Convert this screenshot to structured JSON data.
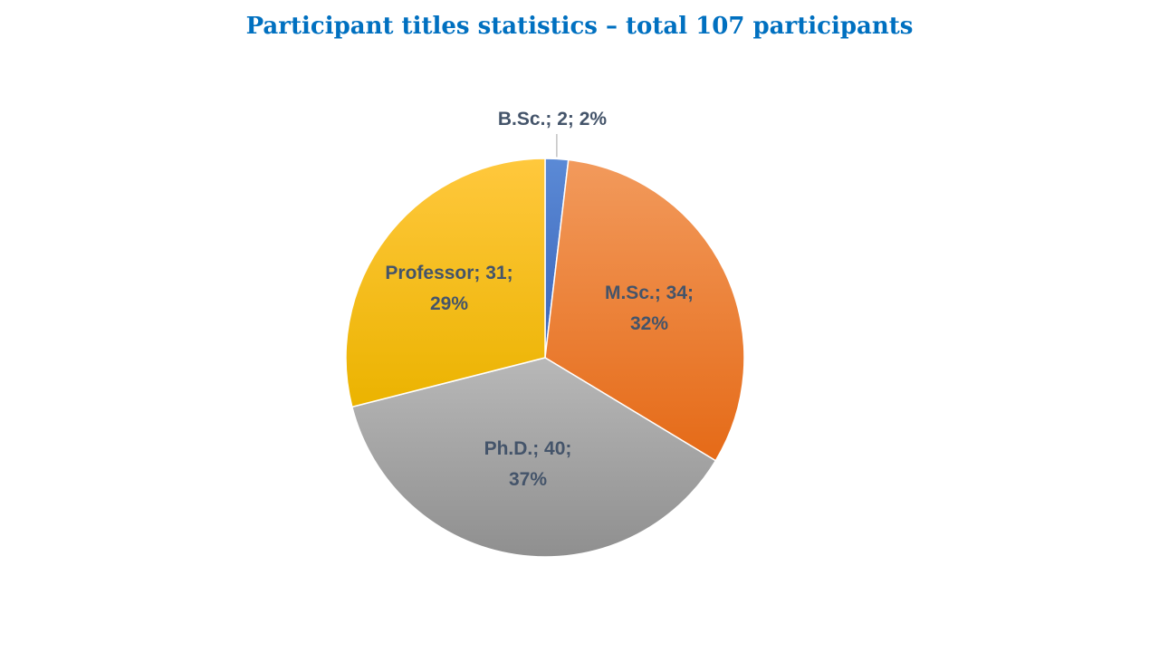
{
  "chart_data": {
    "type": "pie",
    "title": "Participant titles statistics – total 107 participants",
    "categories": [
      "B.Sc.",
      "M.Sc.",
      "Ph.D.",
      "Professor"
    ],
    "values": [
      2,
      34,
      40,
      31
    ],
    "percents": [
      "2%",
      "32%",
      "37%",
      "29%"
    ],
    "labels": [
      [
        "B.Sc.; 2; 2%"
      ],
      [
        "M.Sc.; 34;",
        "32%"
      ],
      [
        "Ph.D.; 40;",
        "37%"
      ],
      [
        "Professor; 31;",
        "29%"
      ]
    ],
    "colors": [
      "#4472c4",
      "#ed7d31",
      "#a5a5a5",
      "#ffc000"
    ],
    "legend": "none"
  }
}
